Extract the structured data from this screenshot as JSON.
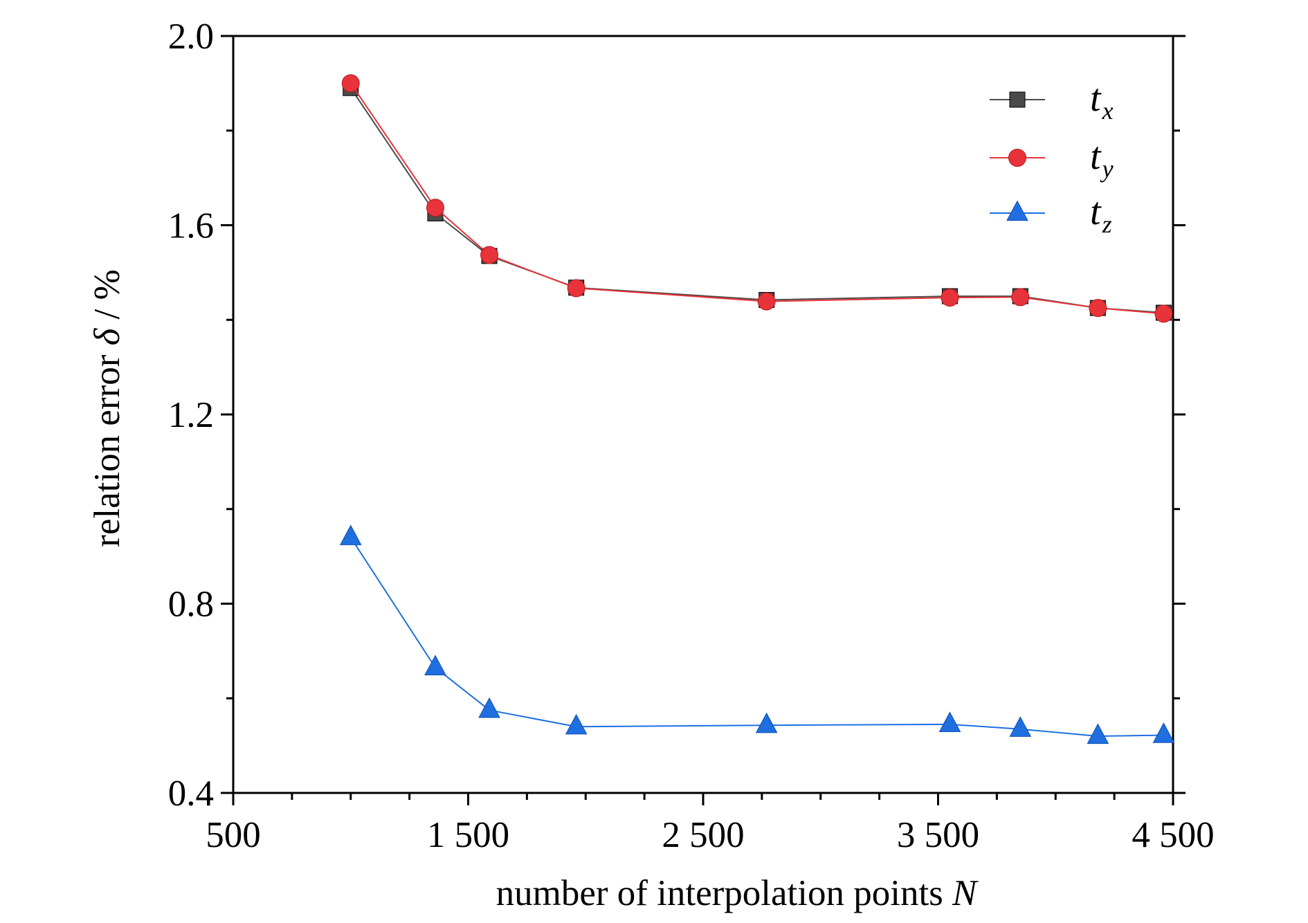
{
  "chart_data": {
    "type": "line",
    "xlabel": "number of interpolation points",
    "xlabel_var": "N",
    "ylabel": "relation error",
    "ylabel_var": "δ",
    "ylabel_unit": " / %",
    "xlim": [
      500,
      4500
    ],
    "ylim": [
      0.4,
      2.0
    ],
    "x_ticks": [
      500,
      1500,
      2500,
      3500,
      4500
    ],
    "x_tick_labels": [
      "500",
      "1 500",
      "2 500",
      "3 500",
      "4 500"
    ],
    "y_ticks": [
      0.4,
      0.8,
      1.2,
      1.6,
      2.0
    ],
    "y_tick_labels": [
      "0.4",
      "0.8",
      "1.2",
      "1.6",
      "2.0"
    ],
    "grid": false,
    "legend_position": "top-right",
    "series": [
      {
        "name": "t",
        "sub": "x",
        "color": "#4a4a4a",
        "marker": "square",
        "x": [
          1000,
          1360,
          1590,
          1960,
          2770,
          3550,
          3850,
          4180,
          4460
        ],
        "y": [
          1.89,
          1.625,
          1.535,
          1.468,
          1.442,
          1.45,
          1.45,
          1.425,
          1.415
        ]
      },
      {
        "name": "t",
        "sub": "y",
        "color": "#e8333a",
        "marker": "circle",
        "x": [
          1000,
          1360,
          1590,
          1960,
          2770,
          3550,
          3850,
          4180,
          4460
        ],
        "y": [
          1.9,
          1.637,
          1.537,
          1.467,
          1.439,
          1.447,
          1.448,
          1.425,
          1.413
        ]
      },
      {
        "name": "t",
        "sub": "z",
        "color": "#1f6fe0",
        "marker": "triangle",
        "x": [
          1000,
          1360,
          1590,
          1960,
          2770,
          3550,
          3850,
          4180,
          4460
        ],
        "y": [
          0.94,
          0.665,
          0.575,
          0.54,
          0.543,
          0.545,
          0.535,
          0.52,
          0.522
        ]
      }
    ]
  }
}
